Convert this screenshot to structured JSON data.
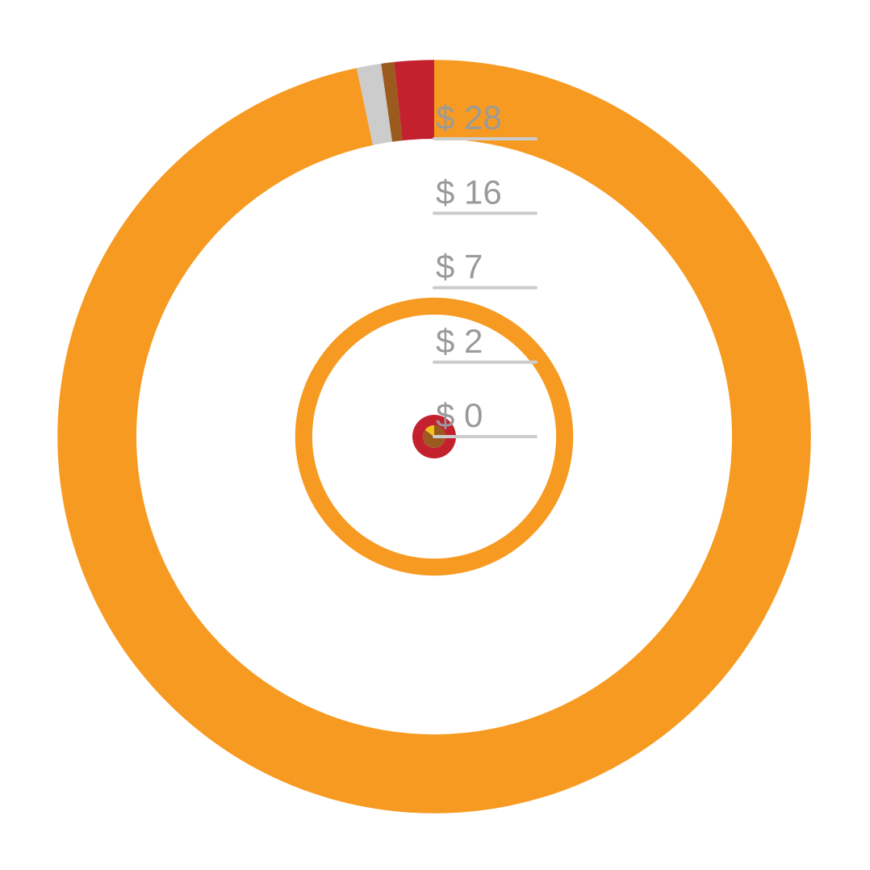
{
  "chart_data": {
    "type": "radial-donut",
    "rlim": [
      0,
      28
    ],
    "rticks": [
      {
        "value": 28,
        "label": "$ 28"
      },
      {
        "value": 15.75,
        "label": "$ 16"
      },
      {
        "value": 7,
        "label": "$ 7"
      },
      {
        "value": 1.75,
        "label": "$ 2"
      },
      {
        "value": 0,
        "label": "$ 0"
      }
    ],
    "rings": [
      {
        "radii": [
          28,
          44.8
        ],
        "values": [
          96.7,
          1.05,
          0.55,
          1.7
        ],
        "colors": [
          "#f79a21",
          "#cccccc",
          "#9b5a1e",
          "#c4212f"
        ]
      },
      {
        "radii": [
          4.7,
          6.1
        ],
        "values": [
          100
        ],
        "colors": [
          "#f79a21"
        ]
      },
      {
        "radii": [
          0.04,
          0.15
        ],
        "values": [
          100
        ],
        "colors": [
          "#c4212f"
        ]
      },
      {
        "radii": [
          0,
          0.04
        ],
        "values": [
          85,
          15
        ],
        "colors": [
          "#9b5a1e",
          "#f0c419"
        ]
      }
    ]
  }
}
